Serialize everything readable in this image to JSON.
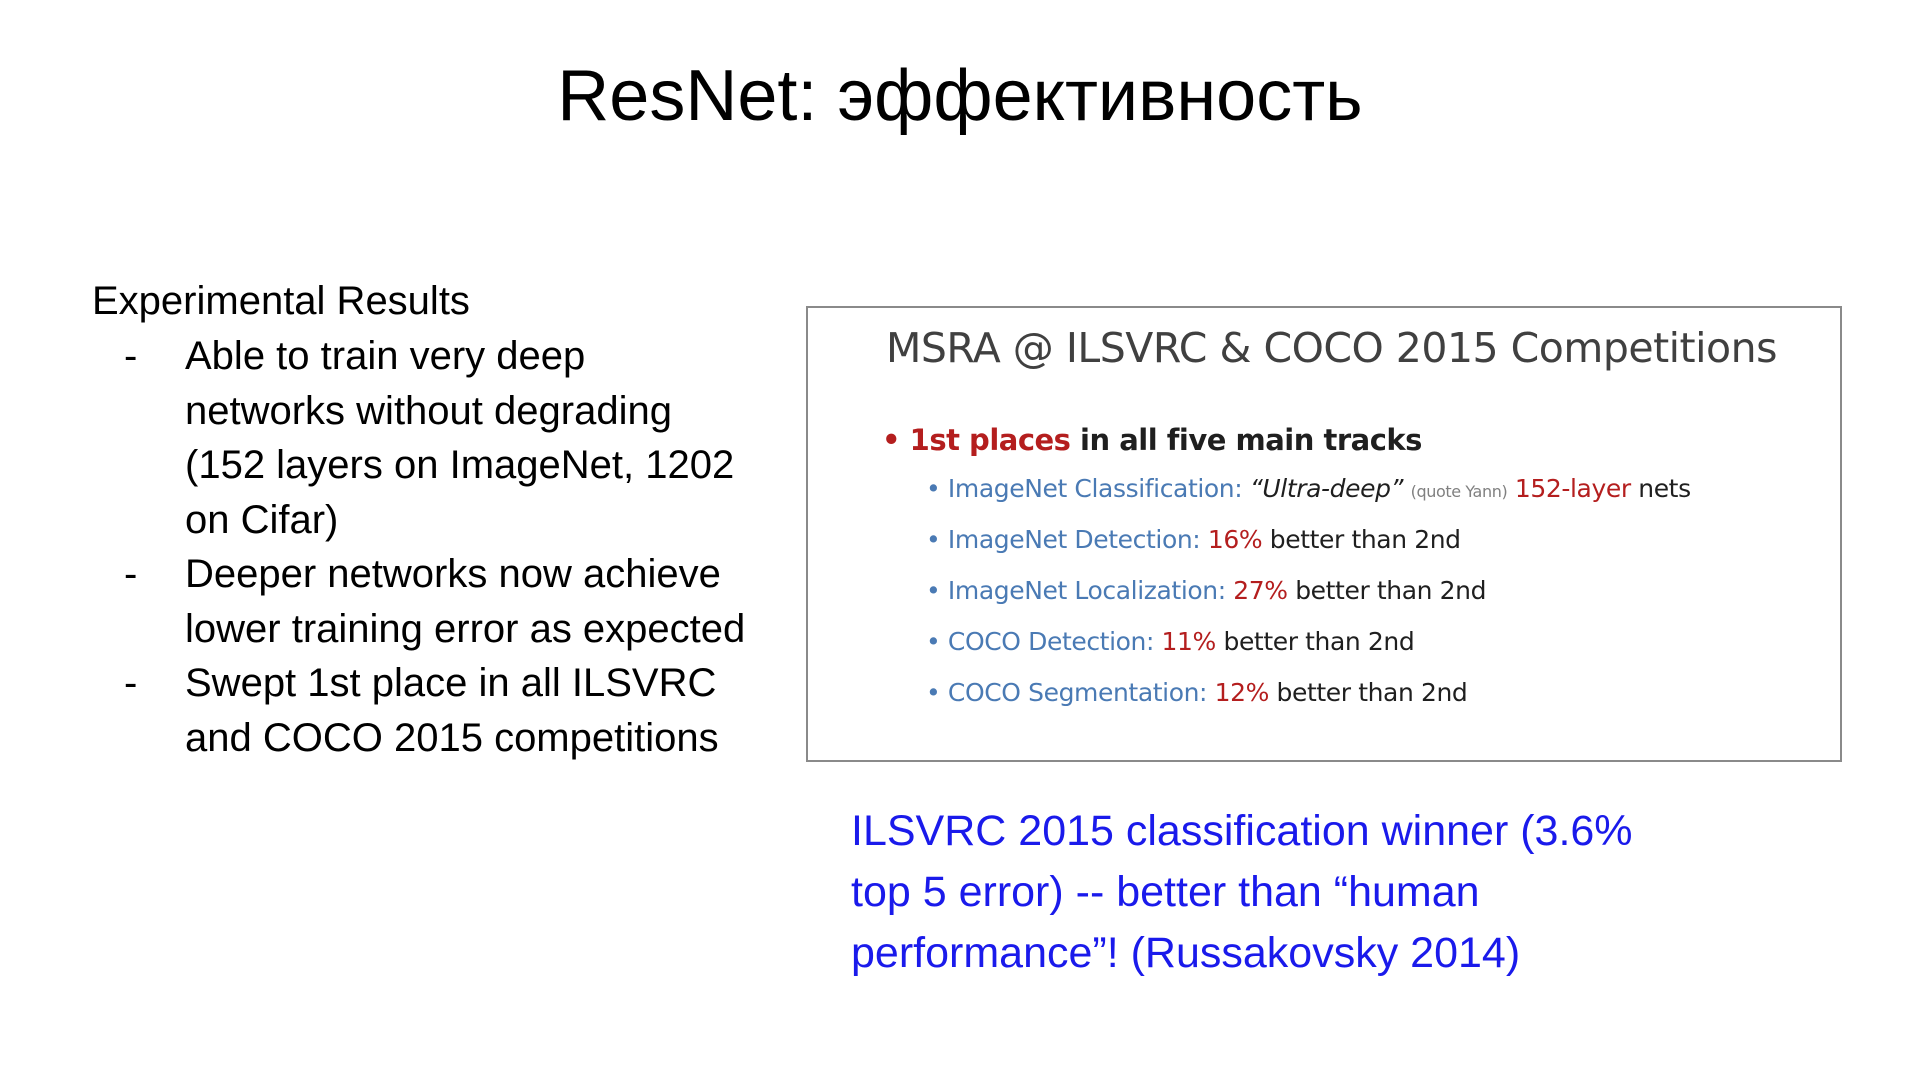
{
  "slide": {
    "title": "ResNet: эффективность"
  },
  "results": {
    "heading": "Experimental Results",
    "items": [
      {
        "dash": "-",
        "lines": [
          "Able to train very deep",
          "networks without degrading",
          "(152 layers on ImageNet, 1202",
          "on Cifar)"
        ]
      },
      {
        "dash": "-",
        "lines": [
          "Deeper networks now achieve",
          "lower training error as expected"
        ]
      },
      {
        "dash": "-",
        "lines": [
          "Swept 1st place in all ILSVRC",
          "and COCO 2015 competitions"
        ]
      }
    ]
  },
  "competition": {
    "title": "MSRA @ ILSVRC & COCO 2015 Competitions",
    "main_bullet": "•",
    "main_highlight": "1st places",
    "main_rest": " in all five main tracks",
    "tracks": [
      {
        "bullet": "•",
        "name": "ImageNet Classification:",
        "quote": "“Ultra-deep”",
        "note": "(quote Yann)",
        "value": "152-layer",
        "suffix": "nets"
      },
      {
        "bullet": "•",
        "name": "ImageNet Detection:",
        "value": "16%",
        "suffix": "better than 2nd"
      },
      {
        "bullet": "•",
        "name": "ImageNet Localization:",
        "value": "27%",
        "suffix": "better than 2nd"
      },
      {
        "bullet": "•",
        "name": "COCO Detection:",
        "value": "11%",
        "suffix": "better than 2nd"
      },
      {
        "bullet": "•",
        "name": "COCO Segmentation:",
        "value": "12%",
        "suffix": "better than 2nd"
      }
    ]
  },
  "winner_note": {
    "lines": [
      "ILSVRC 2015 classification winner (3.6%",
      "top 5 error) -- better than “human",
      "performance”! (Russakovsky 2014)"
    ]
  },
  "colors": {
    "title_text": "#000000",
    "track_name": "#4a7ab4",
    "highlight_red": "#b41e1e",
    "winner_note_blue": "#1a1aeb",
    "box_border": "#8a8a8a"
  }
}
